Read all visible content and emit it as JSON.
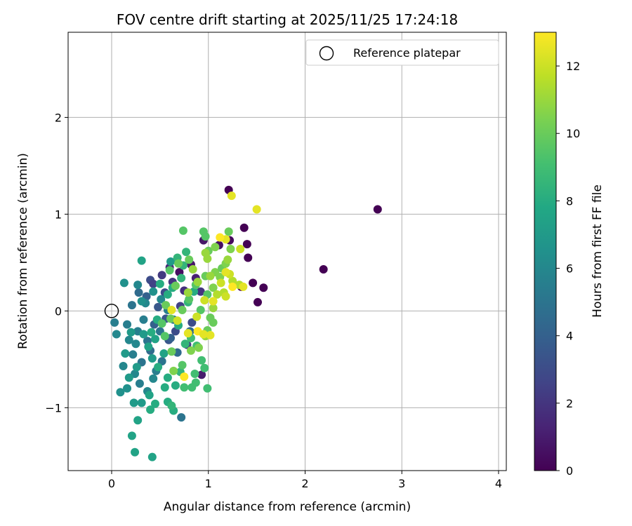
{
  "chart_data": {
    "type": "scatter",
    "title": "FOV centre drift starting at 2025/11/25 17:24:18",
    "xlabel": "Angular distance from reference (arcmin)",
    "ylabel": "Rotation from reference (arcmin)",
    "xlim": [
      -0.45,
      4.08
    ],
    "ylim": [
      -1.65,
      2.88
    ],
    "xticks": [
      {
        "value": 0,
        "label": "0"
      },
      {
        "value": 1,
        "label": "1"
      },
      {
        "value": 2,
        "label": "2"
      },
      {
        "value": 3,
        "label": "3"
      },
      {
        "value": 4,
        "label": "4"
      }
    ],
    "yticks": [
      {
        "value": -1,
        "label": "−1"
      },
      {
        "value": 0,
        "label": "0"
      },
      {
        "value": 1,
        "label": "1"
      },
      {
        "value": 2,
        "label": "2"
      }
    ],
    "grid": true,
    "legend": {
      "placement": "upper right",
      "entries": [
        "Reference platepar"
      ]
    },
    "reference": {
      "x": 0,
      "y": 0,
      "label": "Reference platepar"
    },
    "colorbar": {
      "label": "Hours from first FF file",
      "colormap": "viridis",
      "range": [
        0,
        13
      ],
      "ticks": [
        {
          "value": 0,
          "label": "0"
        },
        {
          "value": 2,
          "label": "2"
        },
        {
          "value": 4,
          "label": "4"
        },
        {
          "value": 6,
          "label": "6"
        },
        {
          "value": 8,
          "label": "8"
        },
        {
          "value": 10,
          "label": "10"
        },
        {
          "value": 12,
          "label": "12"
        }
      ]
    },
    "points": [
      [
        2.75,
        1.05,
        0
      ],
      [
        2.19,
        0.43,
        0
      ],
      [
        1.21,
        1.25,
        0
      ],
      [
        1.37,
        0.86,
        0
      ],
      [
        1.4,
        0.69,
        0
      ],
      [
        1.41,
        0.55,
        0
      ],
      [
        1.51,
        0.09,
        0
      ],
      [
        1.57,
        0.24,
        0
      ],
      [
        1.46,
        0.29,
        0
      ],
      [
        1.34,
        0.25,
        0
      ],
      [
        1.22,
        0.73,
        0.3
      ],
      [
        1.11,
        0.68,
        0.5
      ],
      [
        0.95,
        0.73,
        0.8
      ],
      [
        0.93,
        -0.66,
        1
      ],
      [
        0.7,
        0.4,
        0.5
      ],
      [
        0.82,
        0.48,
        0.8
      ],
      [
        0.87,
        0.34,
        1.2
      ],
      [
        0.6,
        0.45,
        1.5
      ],
      [
        0.75,
        0.21,
        1.8
      ],
      [
        0.52,
        0.37,
        2.2
      ],
      [
        0.4,
        0.32,
        3
      ],
      [
        0.43,
        0.28,
        2.5
      ],
      [
        0.92,
        0.2,
        2
      ],
      [
        0.78,
        -0.35,
        2.5
      ],
      [
        0.66,
        -0.21,
        3
      ],
      [
        0.56,
        -0.08,
        3.5
      ],
      [
        0.48,
        0.04,
        3.5
      ],
      [
        0.71,
        0.05,
        2.5
      ],
      [
        0.83,
        -0.12,
        3
      ],
      [
        0.55,
        0.19,
        3
      ],
      [
        0.36,
        0.15,
        4
      ],
      [
        0.28,
        0.19,
        4.5
      ],
      [
        0.63,
        0.3,
        2
      ],
      [
        0.44,
        -0.14,
        4
      ],
      [
        0.59,
        -0.3,
        3.5
      ],
      [
        0.72,
        -1.1,
        5
      ],
      [
        0.21,
        0.06,
        5
      ],
      [
        0.16,
        -0.14,
        5.5
      ],
      [
        0.03,
        -0.12,
        5.5
      ],
      [
        0.05,
        -0.24,
        6
      ],
      [
        0.22,
        -0.45,
        5.5
      ],
      [
        0.31,
        -0.53,
        5
      ],
      [
        0.37,
        -0.31,
        5
      ],
      [
        0.27,
        -0.21,
        5.5
      ],
      [
        0.33,
        -0.09,
        5.5
      ],
      [
        0.25,
        -0.34,
        6
      ],
      [
        0.18,
        -0.3,
        6
      ],
      [
        0.4,
        -0.41,
        4.5
      ],
      [
        0.52,
        -0.52,
        5
      ],
      [
        0.46,
        -0.62,
        5.5
      ],
      [
        0.29,
        -0.75,
        5.5
      ],
      [
        0.37,
        -0.83,
        6
      ],
      [
        0.12,
        -0.57,
        6
      ],
      [
        0.09,
        -0.84,
        6.5
      ],
      [
        0.16,
        -0.8,
        6.5
      ],
      [
        0.24,
        -0.65,
        6
      ],
      [
        0.43,
        -0.7,
        6
      ],
      [
        0.61,
        -0.28,
        4
      ],
      [
        0.68,
        -0.43,
        4.5
      ],
      [
        0.81,
        -0.21,
        4.5
      ],
      [
        0.64,
        -0.09,
        5
      ],
      [
        0.5,
        -0.21,
        5
      ],
      [
        0.35,
        0.08,
        6
      ],
      [
        0.27,
        0.27,
        6
      ],
      [
        0.13,
        0.29,
        6.5
      ],
      [
        0.31,
        0.1,
        6.5
      ],
      [
        0.43,
        0.2,
        6.5
      ],
      [
        0.51,
        0.12,
        6
      ],
      [
        0.58,
        0.01,
        5.5
      ],
      [
        0.2,
        -0.22,
        7
      ],
      [
        0.33,
        -0.24,
        7
      ],
      [
        0.42,
        -0.49,
        7
      ],
      [
        0.26,
        -0.58,
        7
      ],
      [
        0.18,
        -0.69,
        7
      ],
      [
        0.14,
        -0.44,
        7
      ],
      [
        0.23,
        -0.95,
        7
      ],
      [
        0.31,
        -0.95,
        7
      ],
      [
        0.39,
        -0.87,
        7.5
      ],
      [
        0.27,
        -1.13,
        7.5
      ],
      [
        0.21,
        -1.29,
        7.5
      ],
      [
        0.24,
        -1.46,
        7.5
      ],
      [
        0.42,
        -1.51,
        7.5
      ],
      [
        0.4,
        -1.02,
        8
      ],
      [
        0.45,
        -0.96,
        8
      ],
      [
        0.58,
        -0.94,
        8
      ],
      [
        0.64,
        -1.03,
        8
      ],
      [
        0.62,
        -0.98,
        8.5
      ],
      [
        0.55,
        -0.79,
        8
      ],
      [
        0.66,
        -0.77,
        8
      ],
      [
        0.71,
        -0.63,
        8.5
      ],
      [
        0.58,
        -0.69,
        8
      ],
      [
        0.48,
        -0.58,
        8
      ],
      [
        0.54,
        -0.44,
        7.5
      ],
      [
        0.45,
        -0.29,
        7.5
      ],
      [
        0.38,
        -0.37,
        7.5
      ],
      [
        0.41,
        -0.22,
        8
      ],
      [
        0.47,
        -0.09,
        8
      ],
      [
        0.58,
        0.17,
        8
      ],
      [
        0.5,
        0.28,
        8
      ],
      [
        0.63,
        0.24,
        8
      ],
      [
        0.31,
        0.52,
        7.5
      ],
      [
        0.61,
        0.51,
        7
      ],
      [
        0.77,
        0.61,
        8.5
      ],
      [
        0.68,
        0.55,
        8.5
      ],
      [
        0.74,
        0.47,
        8.5
      ],
      [
        0.72,
        0.34,
        8.5
      ],
      [
        0.79,
        0.09,
        8.5
      ],
      [
        0.85,
        0.2,
        8
      ],
      [
        0.69,
        -0.15,
        8
      ],
      [
        0.76,
        -0.34,
        8.5
      ],
      [
        0.82,
        -0.28,
        9
      ],
      [
        0.88,
        -0.36,
        9
      ],
      [
        0.93,
        -0.51,
        9
      ],
      [
        0.86,
        -0.65,
        9
      ],
      [
        0.83,
        -0.79,
        9
      ],
      [
        0.96,
        -0.59,
        9
      ],
      [
        0.99,
        -0.8,
        9
      ],
      [
        0.87,
        -0.74,
        9
      ],
      [
        0.75,
        -0.79,
        9
      ],
      [
        0.73,
        -0.56,
        9.5
      ],
      [
        0.62,
        -0.42,
        10
      ],
      [
        0.55,
        -0.26,
        9.5
      ],
      [
        0.52,
        -0.13,
        9.5
      ],
      [
        0.61,
        -0.08,
        10
      ],
      [
        0.73,
        0.01,
        10
      ],
      [
        0.8,
        0.12,
        9.5
      ],
      [
        0.87,
        0.27,
        9.5
      ],
      [
        0.97,
        0.36,
        10
      ],
      [
        0.99,
        0.17,
        9.5
      ],
      [
        0.92,
        0.01,
        9.5
      ],
      [
        0.99,
        -0.2,
        10
      ],
      [
        1.02,
        -0.07,
        10
      ],
      [
        1.05,
        -0.12,
        10
      ],
      [
        1.0,
        0.62,
        10
      ],
      [
        0.97,
        0.77,
        9.5
      ],
      [
        0.95,
        0.82,
        9.5
      ],
      [
        0.8,
        0.53,
        10
      ],
      [
        0.74,
        0.83,
        9.5
      ],
      [
        0.69,
        0.49,
        10
      ],
      [
        0.66,
        0.26,
        10
      ],
      [
        0.6,
        0.42,
        9.5
      ],
      [
        0.56,
        0.06,
        10
      ],
      [
        1.07,
        0.4,
        10.5
      ],
      [
        1.14,
        0.44,
        10
      ],
      [
        1.18,
        0.49,
        10.5
      ],
      [
        1.2,
        0.53,
        11
      ],
      [
        1.23,
        0.64,
        10.5
      ],
      [
        1.07,
        0.66,
        10.5
      ],
      [
        1.21,
        0.82,
        10
      ],
      [
        1.12,
        0.35,
        10.5
      ],
      [
        1.05,
        0.24,
        10.5
      ],
      [
        0.97,
        0.6,
        11
      ],
      [
        1.05,
        0.03,
        11
      ],
      [
        0.97,
        -0.26,
        11
      ],
      [
        0.9,
        -0.38,
        10.5
      ],
      [
        0.82,
        -0.41,
        10.5
      ],
      [
        0.64,
        -0.62,
        10.5
      ],
      [
        1.25,
        0.31,
        11.5
      ],
      [
        1.16,
        0.19,
        11.5
      ],
      [
        1.32,
        0.27,
        11.5
      ],
      [
        1.22,
        0.38,
        12
      ],
      [
        1.13,
        0.29,
        12
      ],
      [
        1.09,
        0.17,
        11.5
      ],
      [
        1.18,
        0.15,
        12
      ],
      [
        1.33,
        0.64,
        12
      ],
      [
        1.24,
        1.19,
        12.5
      ],
      [
        1.5,
        1.05,
        12.5
      ],
      [
        1.18,
        0.74,
        12.5
      ],
      [
        1.12,
        0.76,
        13
      ],
      [
        1.36,
        0.25,
        12.5
      ],
      [
        1.25,
        0.25,
        13
      ],
      [
        1.18,
        0.4,
        12.5
      ],
      [
        1.05,
        0.1,
        12.5
      ],
      [
        0.96,
        0.11,
        12
      ],
      [
        1.02,
        -0.25,
        12.5
      ],
      [
        0.89,
        -0.21,
        13
      ],
      [
        0.95,
        -0.24,
        12.5
      ],
      [
        0.79,
        -0.23,
        12.5
      ],
      [
        0.75,
        -0.68,
        13
      ],
      [
        0.62,
        0.01,
        12.5
      ],
      [
        0.68,
        -0.1,
        12
      ],
      [
        0.88,
        -0.06,
        12
      ],
      [
        0.79,
        0.19,
        11
      ],
      [
        0.89,
        0.3,
        11
      ],
      [
        1.02,
        0.36,
        11
      ],
      [
        0.99,
        0.54,
        11
      ],
      [
        0.84,
        0.43,
        11
      ]
    ]
  }
}
